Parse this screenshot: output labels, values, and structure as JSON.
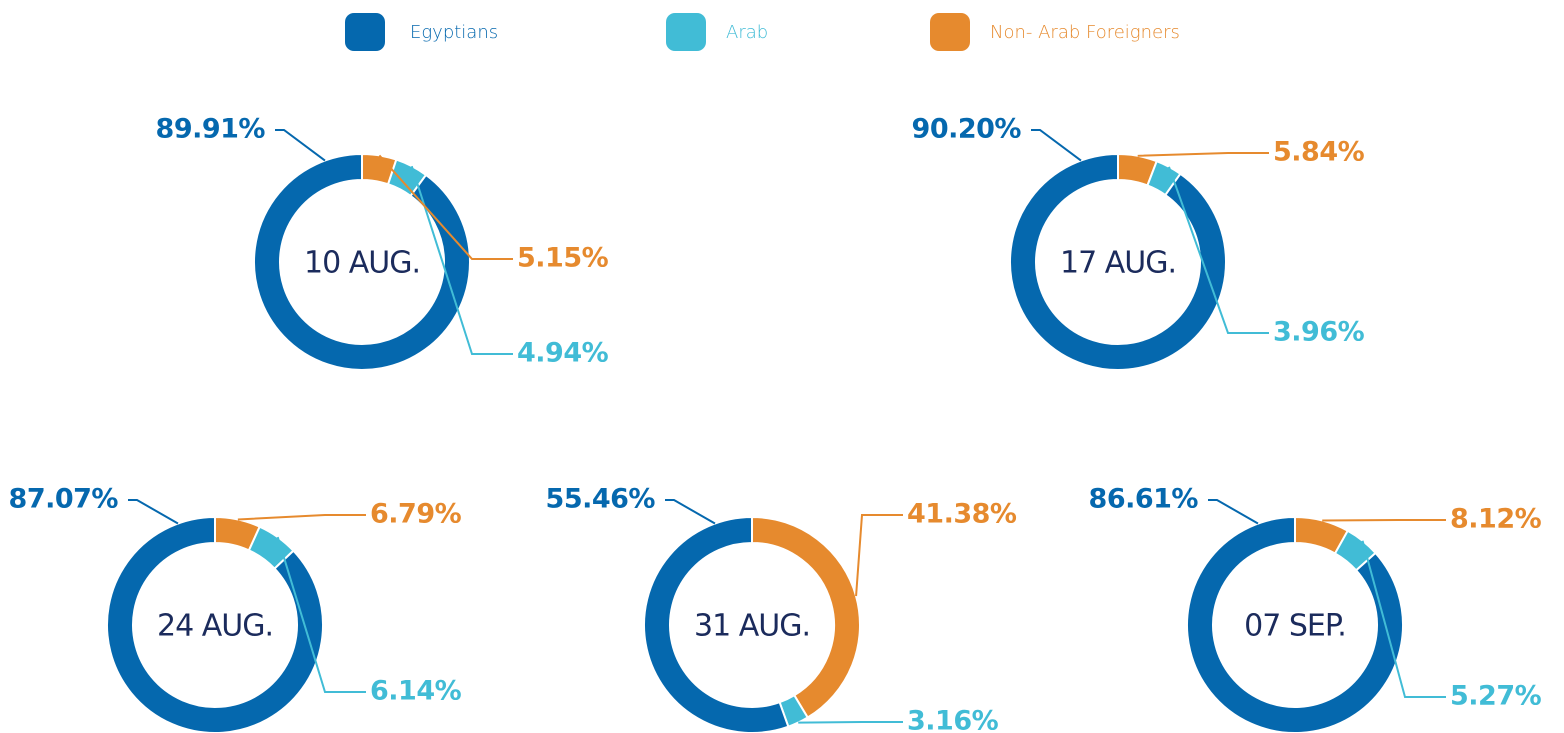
{
  "legend": {
    "categories": [
      "Egyptians",
      "Arab",
      "Non- Arab Foreigners"
    ],
    "colors": [
      "#0568ae",
      "#41bcd6",
      "#e68a2e"
    ]
  },
  "chart_data": [
    {
      "type": "pie",
      "title": "10 AUG.",
      "values": [
        89.91,
        4.94,
        5.15
      ],
      "value_labels": [
        "89.91%",
        "4.94%",
        "5.15%"
      ]
    },
    {
      "type": "pie",
      "title": "17 AUG.",
      "values": [
        90.2,
        3.96,
        5.84
      ],
      "value_labels": [
        "90.20%",
        "3.96%",
        "5.84%"
      ]
    },
    {
      "type": "pie",
      "title": "24 AUG.",
      "values": [
        87.07,
        6.14,
        6.79
      ],
      "value_labels": [
        "87.07%",
        "6.14%",
        "6.79%"
      ]
    },
    {
      "type": "pie",
      "title": "31 AUG.",
      "values": [
        55.46,
        3.16,
        41.38
      ],
      "value_labels": [
        "55.46%",
        "3.16%",
        "41.38%"
      ]
    },
    {
      "type": "pie",
      "title": "07 SEP.",
      "values": [
        86.61,
        5.27,
        8.12
      ],
      "value_labels": [
        "86.61%",
        "5.27%",
        "8.12%"
      ]
    }
  ]
}
